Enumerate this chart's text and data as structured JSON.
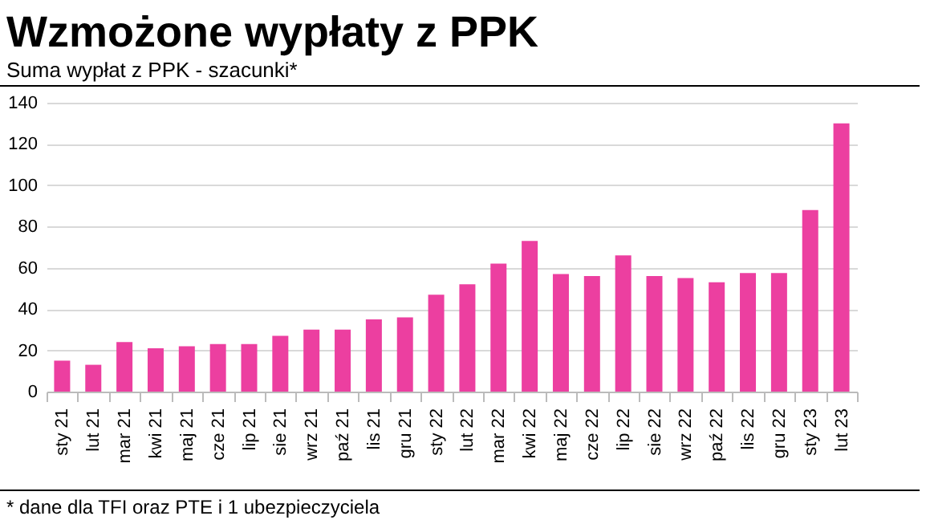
{
  "chart_data": {
    "type": "bar",
    "title": "Wzmożone wypłaty z PPK",
    "subtitle": "Suma wypłat z PPK - szacunki*",
    "annotations": [
      "* dane dla TFI oraz PTE i 1 ubezpieczyciela"
    ],
    "categories": [
      "sty 21",
      "lut 21",
      "mar 21",
      "kwi 21",
      "maj 21",
      "cze 21",
      "lip 21",
      "sie 21",
      "wrz 21",
      "paź 21",
      "lis 21",
      "gru 21",
      "sty 22",
      "lut 22",
      "mar 22",
      "kwi 22",
      "maj 22",
      "cze 22",
      "lip 22",
      "sie 22",
      "wrz 22",
      "paź 22",
      "lis 22",
      "gru 22",
      "sty 23",
      "lut 23"
    ],
    "values": [
      15,
      13,
      24,
      21,
      22,
      23,
      23,
      27,
      30,
      30,
      35,
      36,
      47,
      52,
      62,
      73,
      57,
      56,
      66,
      56,
      55,
      53,
      57.5,
      57.5,
      88,
      130
    ],
    "color": "#ec3fa0",
    "ylim": [
      0,
      140
    ],
    "yticks": [
      0,
      20,
      40,
      60,
      80,
      100,
      120,
      140
    ],
    "grid": "y"
  }
}
